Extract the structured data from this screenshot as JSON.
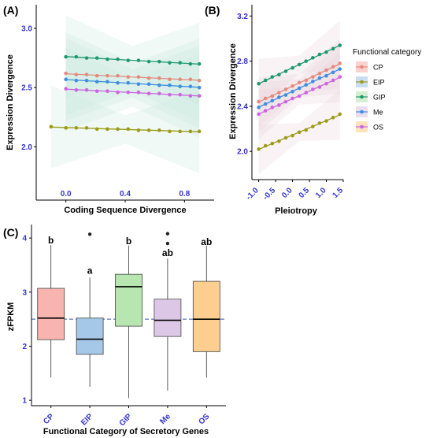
{
  "colors": {
    "CP": "#e58a7e",
    "EIP": "#9c9c1a",
    "GIP": "#1f9a6f",
    "Me": "#3f8fe0",
    "OS": "#cc66e0",
    "CP_fill": "#f8b4ae",
    "EIP_fill": "#a6c8e8",
    "GIP_fill": "#b7e6b0",
    "Me_fill": "#dcc8e6",
    "OS_fill": "#fccf90",
    "tick": "#3333cc",
    "ref_line": "#3355aa"
  },
  "legend": {
    "title": "Functional category",
    "items": [
      "CP",
      "EIP",
      "GIP",
      "Me",
      "OS"
    ]
  },
  "chart_data": [
    {
      "panel": "(A)",
      "type": "scatter",
      "xlabel": "Coding Sequence Divergence",
      "ylabel": "Expression Divergence",
      "xlim": [
        -0.2,
        1.0
      ],
      "ylim": [
        1.55,
        3.2
      ],
      "xticks": [
        "0.0",
        "0.4",
        "0.8"
      ],
      "xtick_values": [
        0.0,
        0.4,
        0.8
      ],
      "yticks": [
        "2.0",
        "2.5",
        "3.0"
      ],
      "ytick_values": [
        2.0,
        2.5,
        3.0
      ],
      "series": [
        {
          "name": "CP",
          "x": [
            0.0,
            0.07,
            0.14,
            0.21,
            0.28,
            0.35,
            0.42,
            0.49,
            0.56,
            0.63,
            0.7,
            0.77,
            0.84,
            0.9
          ],
          "y": [
            2.62,
            2.61,
            2.61,
            2.6,
            2.6,
            2.6,
            2.59,
            2.59,
            2.58,
            2.58,
            2.57,
            2.57,
            2.57,
            2.56
          ]
        },
        {
          "name": "EIP",
          "x": [
            -0.1,
            0.0,
            0.07,
            0.14,
            0.21,
            0.28,
            0.35,
            0.42,
            0.49,
            0.56,
            0.63,
            0.7,
            0.77,
            0.84,
            0.9
          ],
          "y": [
            2.17,
            2.16,
            2.16,
            2.16,
            2.15,
            2.15,
            2.15,
            2.15,
            2.14,
            2.14,
            2.14,
            2.13,
            2.13,
            2.13,
            2.13
          ]
        },
        {
          "name": "GIP",
          "x": [
            0.0,
            0.07,
            0.14,
            0.21,
            0.28,
            0.35,
            0.42,
            0.49,
            0.56,
            0.63,
            0.7,
            0.77,
            0.84,
            0.9
          ],
          "y": [
            2.76,
            2.76,
            2.75,
            2.75,
            2.74,
            2.74,
            2.73,
            2.73,
            2.72,
            2.72,
            2.71,
            2.71,
            2.7,
            2.7
          ]
        },
        {
          "name": "Me",
          "x": [
            0.0,
            0.07,
            0.14,
            0.21,
            0.28,
            0.35,
            0.42,
            0.49,
            0.56,
            0.63,
            0.7,
            0.77,
            0.84,
            0.9
          ],
          "y": [
            2.57,
            2.56,
            2.56,
            2.55,
            2.55,
            2.54,
            2.54,
            2.53,
            2.53,
            2.52,
            2.52,
            2.51,
            2.51,
            2.5
          ]
        },
        {
          "name": "OS",
          "x": [
            0.0,
            0.07,
            0.14,
            0.21,
            0.28,
            0.35,
            0.42,
            0.49,
            0.56,
            0.63,
            0.7,
            0.77,
            0.84,
            0.9
          ],
          "y": [
            2.49,
            2.48,
            2.48,
            2.47,
            2.47,
            2.46,
            2.46,
            2.46,
            2.45,
            2.45,
            2.44,
            2.44,
            2.43,
            2.43
          ]
        }
      ]
    },
    {
      "panel": "(B)",
      "type": "scatter",
      "xlabel": "Pleiotropy",
      "ylabel": "Expression Divergence",
      "xlim": [
        -1.2,
        1.5
      ],
      "ylim": [
        1.75,
        3.3
      ],
      "xticks": [
        "-1.0",
        "-0.5",
        "0.0",
        "0.5",
        "1.0",
        "1.5"
      ],
      "xtick_values": [
        -1.0,
        -0.5,
        0.0,
        0.5,
        1.0,
        1.5
      ],
      "yticks": [
        "2.0",
        "2.4",
        "2.8",
        "3.2"
      ],
      "ytick_values": [
        2.0,
        2.4,
        2.8,
        3.2
      ],
      "series": [
        {
          "name": "CP",
          "x": [
            -1.0,
            -0.8,
            -0.6,
            -0.4,
            -0.2,
            0.0,
            0.2,
            0.4,
            0.6,
            0.8,
            1.0,
            1.2,
            1.4
          ],
          "y": [
            2.44,
            2.47,
            2.49,
            2.52,
            2.55,
            2.58,
            2.61,
            2.63,
            2.66,
            2.69,
            2.72,
            2.75,
            2.78
          ]
        },
        {
          "name": "EIP",
          "x": [
            -1.0,
            -0.8,
            -0.6,
            -0.4,
            -0.2,
            0.0,
            0.2,
            0.4,
            0.6,
            0.8,
            1.0,
            1.2,
            1.4
          ],
          "y": [
            2.02,
            2.05,
            2.07,
            2.09,
            2.12,
            2.14,
            2.17,
            2.19,
            2.22,
            2.25,
            2.27,
            2.3,
            2.33
          ]
        },
        {
          "name": "GIP",
          "x": [
            -1.0,
            -0.8,
            -0.6,
            -0.4,
            -0.2,
            0.0,
            0.2,
            0.4,
            0.6,
            0.8,
            1.0,
            1.2,
            1.4
          ],
          "y": [
            2.6,
            2.63,
            2.66,
            2.68,
            2.71,
            2.74,
            2.77,
            2.8,
            2.83,
            2.86,
            2.88,
            2.91,
            2.94
          ]
        },
        {
          "name": "Me",
          "x": [
            -1.0,
            -0.8,
            -0.6,
            -0.4,
            -0.2,
            0.0,
            0.2,
            0.4,
            0.6,
            0.8,
            1.0,
            1.2,
            1.4
          ],
          "y": [
            2.39,
            2.42,
            2.45,
            2.48,
            2.5,
            2.53,
            2.56,
            2.59,
            2.62,
            2.65,
            2.67,
            2.7,
            2.73
          ]
        },
        {
          "name": "OS",
          "x": [
            -1.0,
            -0.8,
            -0.6,
            -0.4,
            -0.2,
            0.0,
            0.2,
            0.4,
            0.6,
            0.8,
            1.0,
            1.2,
            1.4
          ],
          "y": [
            2.33,
            2.36,
            2.39,
            2.41,
            2.44,
            2.47,
            2.49,
            2.52,
            2.55,
            2.57,
            2.6,
            2.63,
            2.66
          ]
        }
      ]
    },
    {
      "panel": "(C)",
      "type": "box",
      "xlabel": "Functional Category of Secretory Genes",
      "ylabel": "zFPKM",
      "ylim": [
        0.9,
        4.25
      ],
      "yticks": [
        "1",
        "2",
        "3",
        "4"
      ],
      "ytick_values": [
        1,
        2,
        3,
        4
      ],
      "reference_line": 2.5,
      "categories": [
        "CP",
        "EIP",
        "GIP",
        "Me",
        "OS"
      ],
      "boxes": [
        {
          "name": "CP",
          "min": 1.42,
          "q1": 2.12,
          "median": 2.52,
          "q3": 3.07,
          "max": 3.87,
          "outliers": [],
          "label": "b"
        },
        {
          "name": "EIP",
          "min": 1.25,
          "q1": 1.85,
          "median": 2.13,
          "q3": 2.52,
          "max": 3.27,
          "outliers": [
            4.07
          ],
          "label": "a"
        },
        {
          "name": "GIP",
          "min": 1.04,
          "q1": 2.37,
          "median": 3.1,
          "q3": 3.33,
          "max": 3.86,
          "outliers": [],
          "label": "b"
        },
        {
          "name": "Me",
          "min": 1.18,
          "q1": 2.18,
          "median": 2.48,
          "q3": 2.87,
          "max": 3.62,
          "outliers": [
            3.9,
            4.08
          ],
          "label": "ab"
        },
        {
          "name": "OS",
          "min": 1.42,
          "q1": 1.9,
          "median": 2.5,
          "q3": 3.2,
          "max": 3.86,
          "outliers": [],
          "label": "ab"
        }
      ]
    }
  ]
}
